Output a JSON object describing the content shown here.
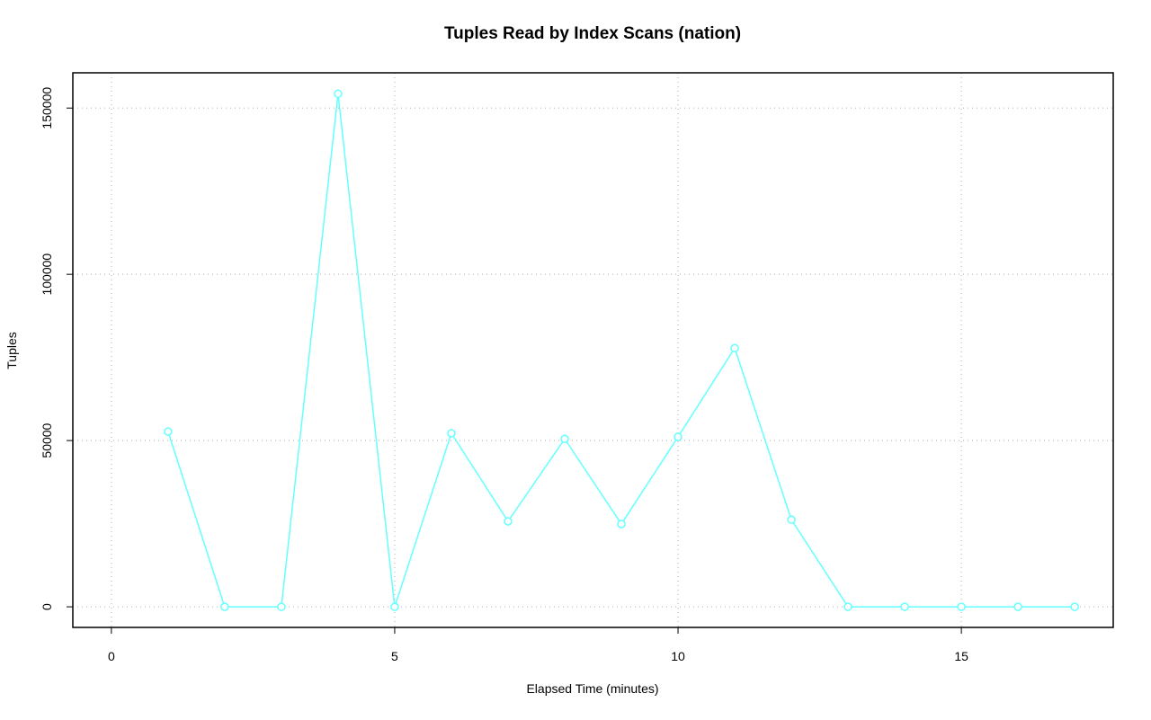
{
  "chart_data": {
    "type": "line",
    "title": "Tuples Read by Index Scans (nation)",
    "x_label": "Elapsed Time (minutes)",
    "y_label": "Tuples",
    "x": [
      1,
      2,
      3,
      4,
      5,
      6,
      7,
      8,
      9,
      10,
      11,
      12,
      13,
      14,
      15,
      16,
      17
    ],
    "series": [
      {
        "name": "nation",
        "color": "#66ffff",
        "values": [
          52700,
          0,
          0,
          154300,
          0,
          52200,
          25700,
          50500,
          24900,
          51100,
          77800,
          26200,
          0,
          0,
          0,
          0,
          0
        ]
      }
    ],
    "xlim": [
      -0.68,
      17.68
    ],
    "xticks": [
      0,
      5,
      10,
      15
    ],
    "ylim": [
      -6200,
      160600
    ],
    "yticks": [
      0,
      50000,
      100000,
      150000
    ],
    "grid": true
  }
}
